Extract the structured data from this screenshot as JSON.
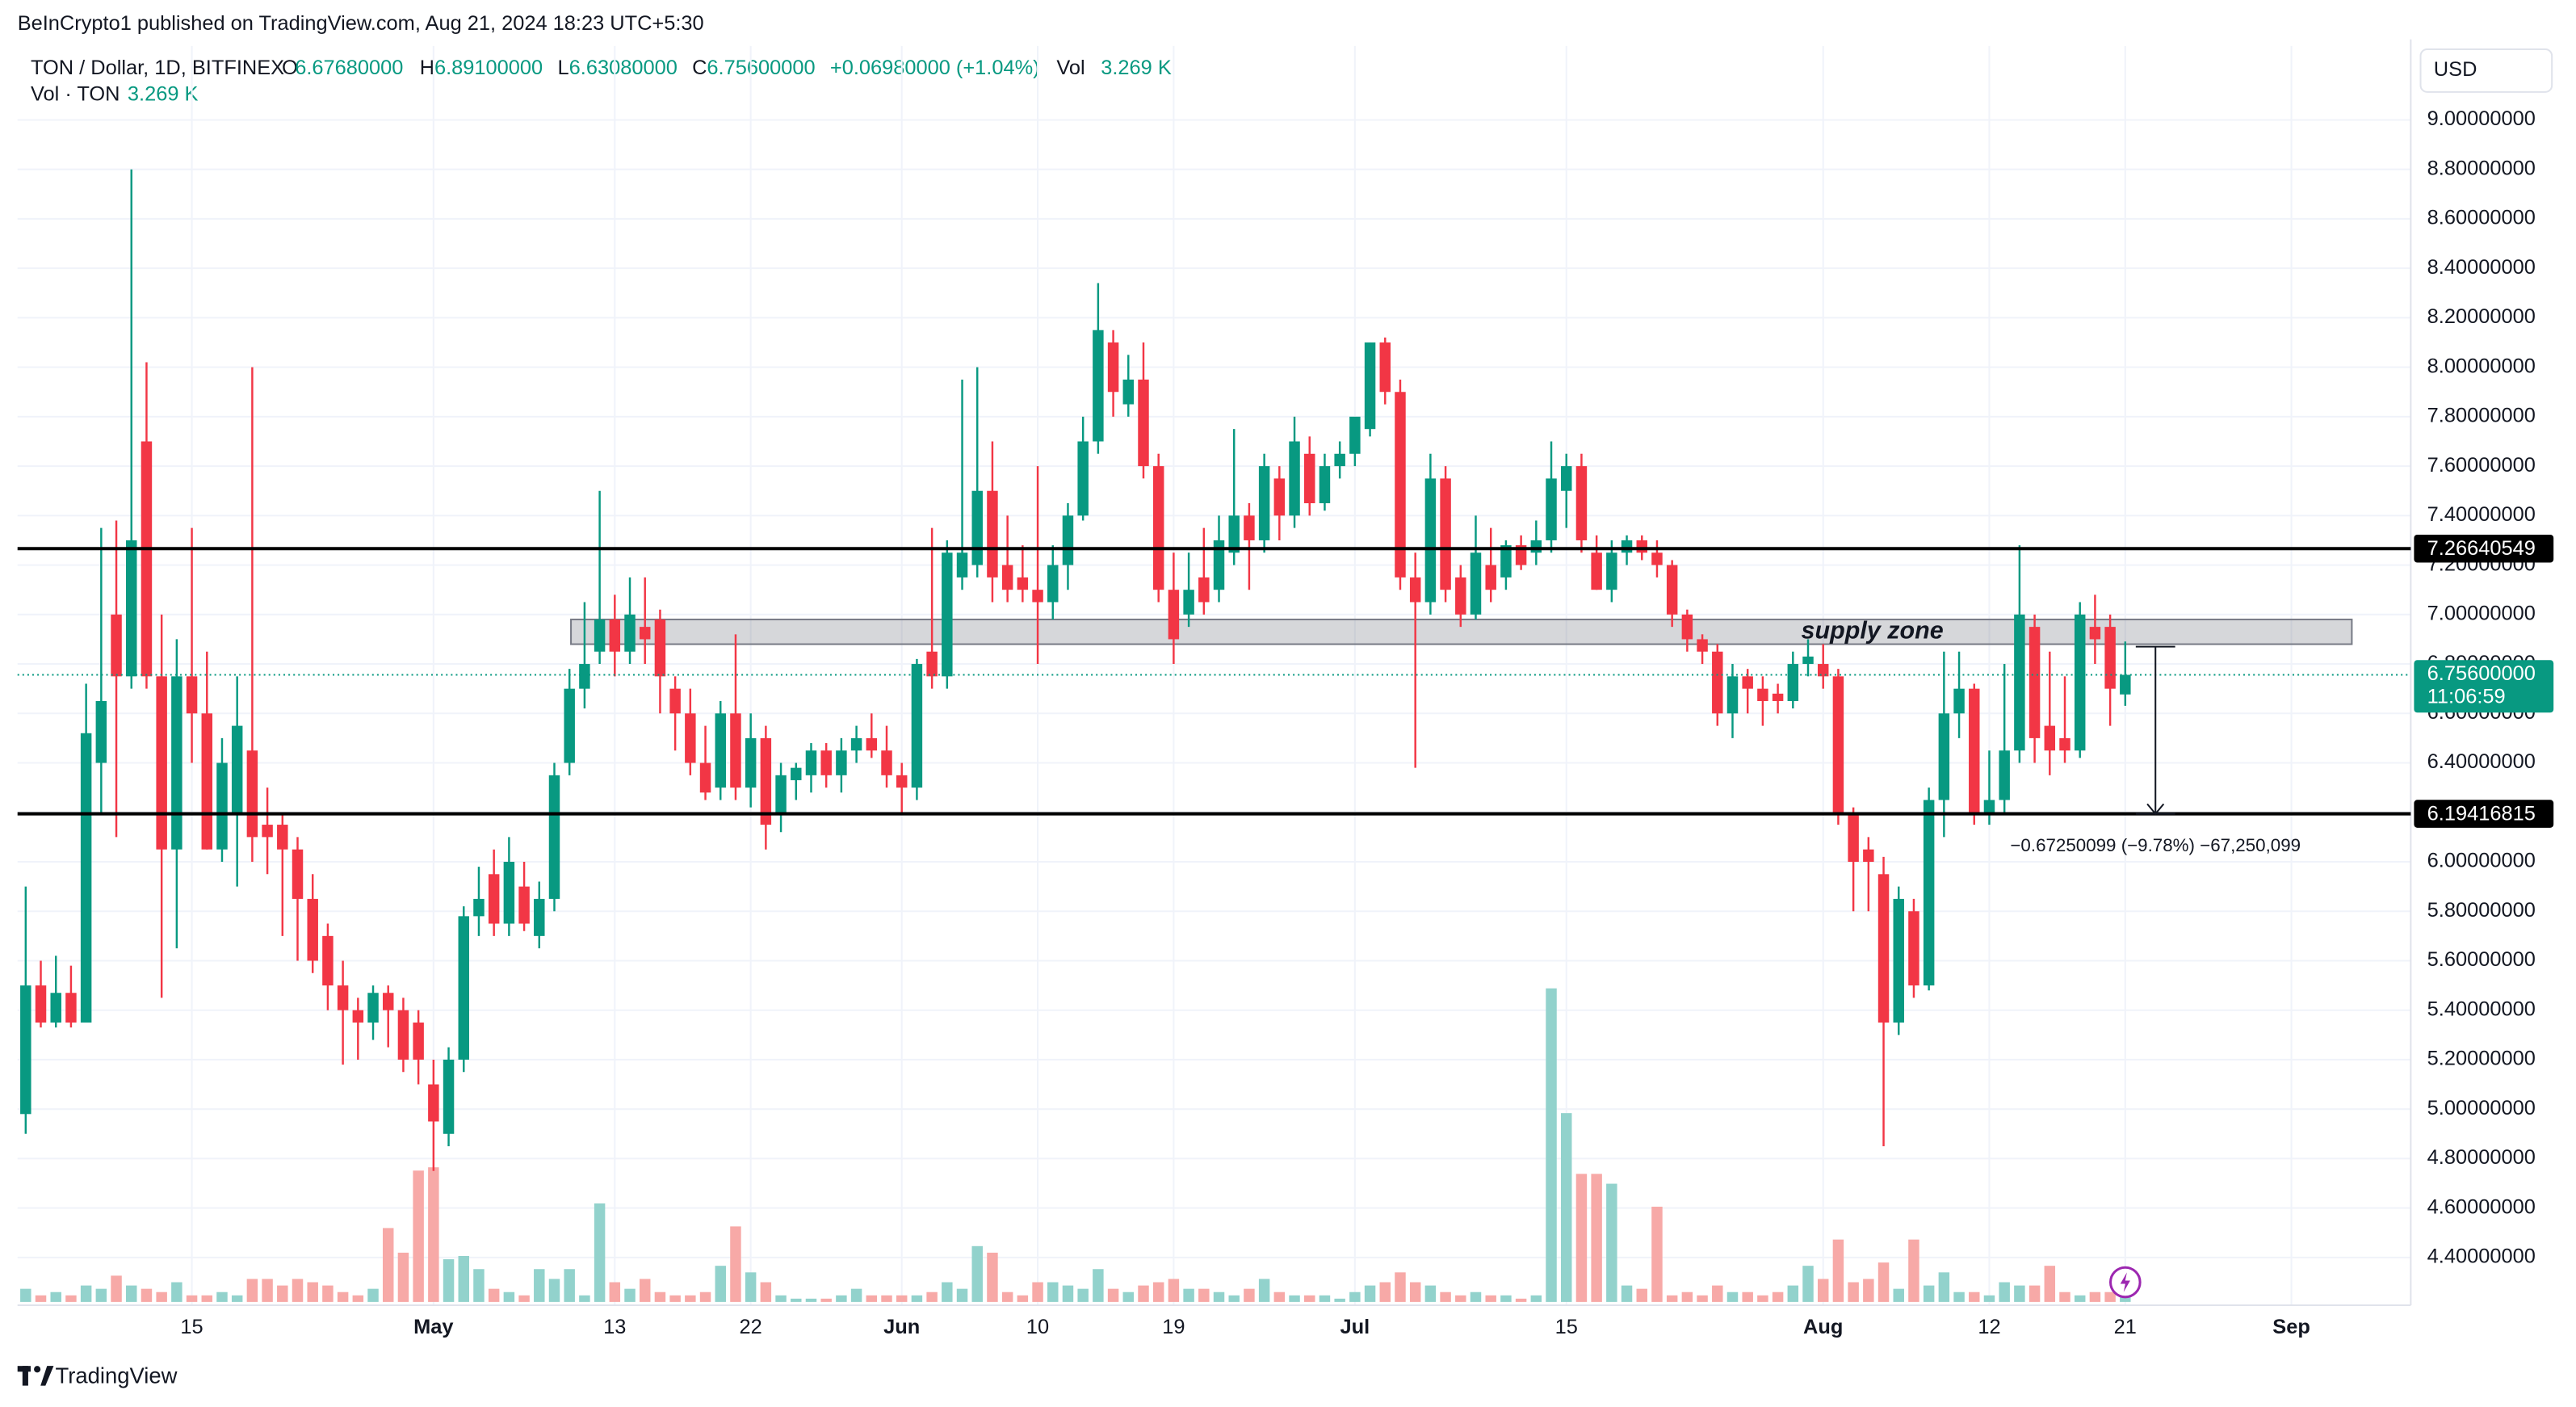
{
  "published": "BeInCrypto1 published on TradingView.com, Aug 21, 2024 18:23 UTC+5:30",
  "footer": "TradingView",
  "chart_data": {
    "type": "candlestick",
    "symbol": "TON / Dollar, 1D, BITFINEX",
    "ohlc_legend": [
      {
        "key": "O",
        "text": "6.67680000"
      },
      {
        "key": "H",
        "text": "6.89100000"
      },
      {
        "key": "L",
        "text": "6.63080000"
      },
      {
        "key": "C",
        "text": "6.75600000"
      }
    ],
    "change": "+0.06980000 (+1.04%)",
    "volume_key": "Vol",
    "volume_title": "Vol · TON",
    "volume_text": "3.269 K",
    "currency": "USD",
    "colors": {
      "up": "#089981",
      "down": "#f23645",
      "up_volume": "#92d2cc",
      "down_volume": "#f7a9a7"
    },
    "open": [
      4.98,
      5.5,
      5.35,
      5.47,
      5.35,
      6.4,
      7.0,
      6.75,
      7.7,
      6.75,
      6.05,
      6.75,
      6.6,
      6.05,
      6.2,
      6.45,
      6.15,
      6.15,
      6.05,
      5.85,
      5.7,
      5.5,
      5.4,
      5.35,
      5.47,
      5.4,
      5.35,
      5.1,
      4.9,
      5.2,
      5.78,
      5.95,
      5.75,
      5.9,
      5.7,
      5.85,
      6.4,
      6.7,
      6.85,
      6.98,
      6.85,
      6.95,
      6.98,
      6.7,
      6.6,
      6.4,
      6.3,
      6.6,
      6.3,
      6.5,
      6.2,
      6.33,
      6.35,
      6.45,
      6.35,
      6.45,
      6.5,
      6.45,
      6.35,
      6.3,
      6.85,
      6.75,
      7.15,
      7.2,
      7.5,
      7.2,
      7.15,
      7.1,
      7.05,
      7.2,
      7.4,
      7.7,
      8.1,
      7.85,
      7.95,
      7.6,
      7.1,
      7.0,
      7.15,
      7.1,
      7.25,
      7.4,
      7.3,
      7.55,
      7.4,
      7.65,
      7.45,
      7.6,
      7.65,
      7.75,
      8.1,
      7.9,
      7.15,
      7.05,
      7.55,
      7.15,
      7.0,
      7.2,
      7.15,
      7.28,
      7.25,
      7.3,
      7.5,
      7.6,
      7.25,
      7.1,
      7.25,
      7.3,
      7.25,
      7.2,
      7.0,
      6.9,
      6.85,
      6.6,
      6.75,
      6.7,
      6.68,
      6.65,
      6.8,
      6.8,
      6.75,
      6.2,
      6.05,
      5.95,
      5.35,
      5.8,
      5.5,
      6.25,
      6.6,
      6.7,
      6.2,
      6.25,
      6.45,
      6.95,
      6.55,
      6.5,
      6.45,
      6.95,
      6.95,
      6.6768
    ],
    "high": [
      5.9,
      5.6,
      5.62,
      5.58,
      6.72,
      7.35,
      7.38,
      8.8,
      8.02,
      7.0,
      6.9,
      7.35,
      6.85,
      6.5,
      6.75,
      8.0,
      6.3,
      6.2,
      6.1,
      5.95,
      5.75,
      5.6,
      5.45,
      5.5,
      5.5,
      5.45,
      5.4,
      5.2,
      5.25,
      5.82,
      5.98,
      6.05,
      6.1,
      6.0,
      5.92,
      6.4,
      6.78,
      7.05,
      7.5,
      7.08,
      7.15,
      7.15,
      7.02,
      6.75,
      6.7,
      6.55,
      6.65,
      6.92,
      6.6,
      6.55,
      6.4,
      6.4,
      6.48,
      6.48,
      6.5,
      6.55,
      6.6,
      6.55,
      6.4,
      6.82,
      7.35,
      7.3,
      7.95,
      8.0,
      7.7,
      7.4,
      7.28,
      7.6,
      7.28,
      7.45,
      7.8,
      8.34,
      8.15,
      8.05,
      8.1,
      7.65,
      7.25,
      7.25,
      7.35,
      7.4,
      7.75,
      7.45,
      7.65,
      7.6,
      7.8,
      7.72,
      7.65,
      7.7,
      7.78,
      8.1,
      8.12,
      7.95,
      7.25,
      7.65,
      7.6,
      7.2,
      7.4,
      7.35,
      7.3,
      7.32,
      7.38,
      7.7,
      7.65,
      7.65,
      7.32,
      7.3,
      7.32,
      7.32,
      7.3,
      7.22,
      7.02,
      6.92,
      6.88,
      6.8,
      6.78,
      6.75,
      6.72,
      6.85,
      6.9,
      6.88,
      6.78,
      6.22,
      6.1,
      6.02,
      5.9,
      5.85,
      6.3,
      6.85,
      6.85,
      6.72,
      6.45,
      6.8,
      7.28,
      7.0,
      6.85,
      6.75,
      7.05,
      7.08,
      7.0,
      6.891
    ],
    "low": [
      4.9,
      5.33,
      5.33,
      5.33,
      5.35,
      6.2,
      6.1,
      6.7,
      6.7,
      5.45,
      5.65,
      6.4,
      6.05,
      6.0,
      5.9,
      6.0,
      5.95,
      5.7,
      5.6,
      5.55,
      5.4,
      5.18,
      5.2,
      5.28,
      5.25,
      5.15,
      5.1,
      4.75,
      4.85,
      5.15,
      5.7,
      5.7,
      5.7,
      5.72,
      5.65,
      5.8,
      6.35,
      6.62,
      6.8,
      6.75,
      6.8,
      6.8,
      6.6,
      6.45,
      6.35,
      6.25,
      6.25,
      6.25,
      6.22,
      6.05,
      6.12,
      6.25,
      6.28,
      6.3,
      6.28,
      6.4,
      6.42,
      6.3,
      6.2,
      6.25,
      6.7,
      6.7,
      7.1,
      7.15,
      7.05,
      7.05,
      7.05,
      6.8,
      6.98,
      7.1,
      7.38,
      7.65,
      7.8,
      7.8,
      7.55,
      7.05,
      6.8,
      6.95,
      7.0,
      7.05,
      7.2,
      7.1,
      7.25,
      7.3,
      7.35,
      7.4,
      7.42,
      7.55,
      7.6,
      7.72,
      7.85,
      7.1,
      6.38,
      7.0,
      7.05,
      6.95,
      6.98,
      7.05,
      7.1,
      7.18,
      7.2,
      7.25,
      7.35,
      7.25,
      7.1,
      7.05,
      7.2,
      7.22,
      7.15,
      6.95,
      6.85,
      6.8,
      6.55,
      6.5,
      6.6,
      6.55,
      6.6,
      6.62,
      6.75,
      6.7,
      6.15,
      5.8,
      5.8,
      4.85,
      5.3,
      5.45,
      5.48,
      6.1,
      6.5,
      6.15,
      6.15,
      6.2,
      6.4,
      6.4,
      6.35,
      6.4,
      6.42,
      6.8,
      6.55,
      6.6308
    ],
    "close": [
      5.5,
      5.35,
      5.47,
      5.35,
      6.52,
      6.65,
      6.75,
      7.3,
      6.75,
      6.05,
      6.75,
      6.6,
      6.05,
      6.4,
      6.55,
      6.1,
      6.1,
      6.05,
      5.85,
      5.6,
      5.5,
      5.4,
      5.35,
      5.47,
      5.4,
      5.2,
      5.2,
      4.95,
      5.2,
      5.78,
      5.85,
      5.75,
      6.0,
      5.75,
      5.85,
      6.35,
      6.7,
      6.8,
      6.98,
      6.85,
      7.0,
      6.9,
      6.75,
      6.6,
      6.4,
      6.28,
      6.6,
      6.3,
      6.5,
      6.15,
      6.35,
      6.38,
      6.45,
      6.35,
      6.45,
      6.5,
      6.45,
      6.35,
      6.3,
      6.8,
      6.75,
      7.25,
      7.25,
      7.5,
      7.15,
      7.1,
      7.1,
      7.05,
      7.2,
      7.4,
      7.7,
      8.15,
      7.9,
      7.95,
      7.6,
      7.1,
      6.9,
      7.1,
      7.05,
      7.3,
      7.4,
      7.3,
      7.6,
      7.4,
      7.7,
      7.45,
      7.6,
      7.65,
      7.8,
      8.1,
      7.9,
      7.15,
      7.05,
      7.55,
      7.1,
      7.0,
      7.25,
      7.1,
      7.28,
      7.2,
      7.3,
      7.55,
      7.6,
      7.3,
      7.1,
      7.25,
      7.3,
      7.25,
      7.2,
      7.0,
      6.9,
      6.85,
      6.6,
      6.75,
      6.7,
      6.65,
      6.65,
      6.8,
      6.83,
      6.75,
      6.2,
      6.0,
      6.0,
      5.35,
      5.85,
      5.5,
      6.25,
      6.6,
      6.7,
      6.2,
      6.25,
      6.45,
      7.0,
      6.5,
      6.45,
      6.45,
      7.0,
      6.9,
      6.7,
      6.756
    ],
    "volume": [
      4360,
      2180,
      3270,
      2180,
      5450,
      4360,
      8720,
      5450,
      4360,
      3270,
      6540,
      2180,
      2180,
      3270,
      2180,
      7630,
      7630,
      5450,
      7630,
      6540,
      5450,
      3270,
      2180,
      4360,
      24525,
      16350,
      43600,
      44690,
      14170,
      15260,
      10900,
      4360,
      3270,
      2180,
      10900,
      7630,
      10900,
      2180,
      32700,
      6540,
      4360,
      7630,
      3270,
      2180,
      2180,
      3270,
      11990,
      25070,
      9810,
      6540,
      2180,
      1090,
      1090,
      1090,
      2180,
      4360,
      2180,
      2180,
      2180,
      2180,
      3270,
      6540,
      4360,
      18530,
      16350,
      3270,
      2180,
      6540,
      6540,
      5450,
      4360,
      10900,
      4360,
      3270,
      5450,
      6540,
      7630,
      4360,
      4360,
      3270,
      2180,
      4360,
      7630,
      3270,
      2180,
      2180,
      2180,
      1090,
      3270,
      5450,
      6540,
      9810,
      6540,
      5450,
      3270,
      2180,
      3270,
      2180,
      2180,
      1090,
      2180,
      104095,
      62675,
      42510,
      42510,
      39240,
      5450,
      4360,
      31610,
      2180,
      3270,
      2180,
      5450,
      3270,
      3270,
      2180,
      3270,
      5450,
      11990,
      7630,
      20710,
      6540,
      7630,
      13080,
      4360,
      20710,
      5450,
      9810,
      3270,
      3270,
      2180,
      6540,
      5450,
      5450,
      11990,
      3270,
      2180,
      3270,
      3270,
      3269
    ],
    "xlim": [
      -0.54,
      157.9
    ],
    "xticks": [
      {
        "value": 11,
        "label": "15"
      },
      {
        "value": 27,
        "label": "May"
      },
      {
        "value": 39,
        "label": "13"
      },
      {
        "value": 48,
        "label": "22"
      },
      {
        "value": 58,
        "label": "Jun"
      },
      {
        "value": 67,
        "label": "10"
      },
      {
        "value": 76,
        "label": "19"
      },
      {
        "value": 88,
        "label": "Jul"
      },
      {
        "value": 102,
        "label": "15"
      },
      {
        "value": 119,
        "label": "Aug"
      },
      {
        "value": 130,
        "label": "12"
      },
      {
        "value": 139,
        "label": "21"
      },
      {
        "value": 150,
        "label": "Sep"
      }
    ],
    "ylim": [
      4.207,
      9.299
    ],
    "yticks": [
      {
        "value": 4.4,
        "label": "4.40000000"
      },
      {
        "value": 4.6,
        "label": "4.60000000"
      },
      {
        "value": 4.8,
        "label": "4.80000000"
      },
      {
        "value": 5,
        "label": "5.00000000"
      },
      {
        "value": 5.2,
        "label": "5.20000000"
      },
      {
        "value": 5.4,
        "label": "5.40000000"
      },
      {
        "value": 5.6,
        "label": "5.60000000"
      },
      {
        "value": 5.8,
        "label": "5.80000000"
      },
      {
        "value": 6,
        "label": "6.00000000"
      },
      {
        "value": 6.2,
        "label": "6.20000000"
      },
      {
        "value": 6.4,
        "label": "6.40000000"
      },
      {
        "value": 6.6,
        "label": "6.60000000"
      },
      {
        "value": 6.8,
        "label": "6.80000000"
      },
      {
        "value": 7,
        "label": "7.00000000"
      },
      {
        "value": 7.2,
        "label": "7.20000000"
      },
      {
        "value": 7.4,
        "label": "7.40000000"
      },
      {
        "value": 7.6,
        "label": "7.60000000"
      },
      {
        "value": 7.8,
        "label": "7.80000000"
      },
      {
        "value": 8,
        "label": "8.00000000"
      },
      {
        "value": 8.2,
        "label": "8.20000000"
      },
      {
        "value": 8.4,
        "label": "8.40000000"
      },
      {
        "value": 8.6,
        "label": "8.60000000"
      },
      {
        "value": 8.8,
        "label": "8.80000000"
      },
      {
        "value": 9,
        "label": "9.00000000"
      }
    ],
    "grid": true,
    "levels": [
      {
        "value": 7.26640549,
        "label": "7.26640549"
      },
      {
        "value": 6.19416815,
        "label": "6.19416815"
      }
    ],
    "last_price": {
      "value": 6.756,
      "label": "6.75600000",
      "countdown": "11:06:59"
    },
    "zone": {
      "label": "supply zone",
      "low": 6.88,
      "high": 6.98,
      "start": 36.1,
      "end": 154
    },
    "measure": {
      "from": 6.87,
      "to": 6.19416815,
      "x": 141,
      "label": "−0.67250099 (−9.78%) −67,250,099"
    }
  }
}
